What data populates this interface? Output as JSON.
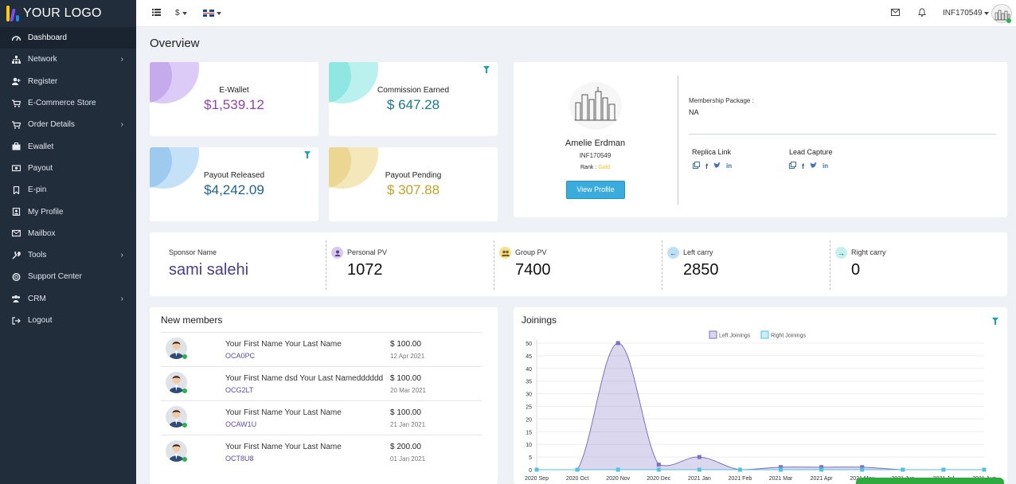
{
  "logo": {
    "text": "YOUR LOGO"
  },
  "sidebar": {
    "items": [
      {
        "label": "Dashboard",
        "icon": "dashboard-icon",
        "has_children": false,
        "active": true
      },
      {
        "label": "Network",
        "icon": "sitemap-icon",
        "has_children": true
      },
      {
        "label": "Register",
        "icon": "user-plus-icon",
        "has_children": false
      },
      {
        "label": "E-Commerce Store",
        "icon": "cart-icon",
        "has_children": false
      },
      {
        "label": "Order Details",
        "icon": "cart-icon",
        "has_children": true
      },
      {
        "label": "Ewallet",
        "icon": "briefcase-icon",
        "has_children": false
      },
      {
        "label": "Payout",
        "icon": "money-icon",
        "has_children": false
      },
      {
        "label": "E-pin",
        "icon": "bookmark-icon",
        "has_children": false
      },
      {
        "label": "My Profile",
        "icon": "profile-icon",
        "has_children": false
      },
      {
        "label": "Mailbox",
        "icon": "envelope-icon",
        "has_children": false
      },
      {
        "label": "Tools",
        "icon": "wrench-icon",
        "has_children": true
      },
      {
        "label": "Support Center",
        "icon": "support-icon",
        "has_children": false
      },
      {
        "label": "CRM",
        "icon": "users-icon",
        "has_children": true
      },
      {
        "label": "Logout",
        "icon": "logout-icon",
        "has_children": false
      }
    ]
  },
  "topbar": {
    "currency": "$",
    "username": "INF170549"
  },
  "page": {
    "title": "Overview"
  },
  "cards": {
    "ewallet": {
      "label": "E-Wallet",
      "value": "$1,539.12"
    },
    "commission": {
      "label": "Commission Earned",
      "value": "$ 647.28"
    },
    "payout_released": {
      "label": "Payout Released",
      "value": "$4,242.09"
    },
    "payout_pending": {
      "label": "Payout Pending",
      "value": "$ 307.88"
    }
  },
  "profile": {
    "name": "Amelie Erdman",
    "id": "INF170549",
    "rank_label": "Rank :",
    "rank": "Gold",
    "view_button": "View Profile",
    "membership_label": "Membership Package :",
    "membership_value": "NA",
    "replica_label": "Replica Link",
    "lead_label": "Lead Capture"
  },
  "stats": {
    "sponsor": {
      "label": "Sponsor Name",
      "value": "sami salehi"
    },
    "personal_pv": {
      "label": "Personal PV",
      "value": "1072"
    },
    "group_pv": {
      "label": "Group PV",
      "value": "7400"
    },
    "left_carry": {
      "label": "Left carry",
      "value": "2850"
    },
    "right_carry": {
      "label": "Right carry",
      "value": "0"
    }
  },
  "new_members": {
    "title": "New members",
    "rows": [
      {
        "name": "Your First Name Your Last Name",
        "id": "OCA0PC",
        "amount": "$ 100.00",
        "date": "12 Apr 2021"
      },
      {
        "name": "Your First Name dsd Your Last Namedddddd",
        "id": "OCG2LT",
        "amount": "$ 100.00",
        "date": "20 Mar 2021"
      },
      {
        "name": "Your First Name Your Last Name",
        "id": "OCAW1U",
        "amount": "$ 100.00",
        "date": "21 Jan 2021"
      },
      {
        "name": "Your First Name Your Last Name",
        "id": "OCT8U8",
        "amount": "$ 200.00",
        "date": "01 Jan 2021"
      }
    ]
  },
  "joinings": {
    "title": "Joinings"
  },
  "colors": {
    "sidebar_bg": "#222d3c",
    "ewallet_value": "#8e44ad",
    "commission_value": "#17788e",
    "payout_released_value": "#1f6190",
    "payout_pending_value": "#c4a227",
    "left_series": "#7d6fc1",
    "right_series": "#4fc3e0"
  },
  "chart_data": {
    "type": "area",
    "title": "Joinings",
    "x": [
      "2020 Sep",
      "2020 Oct",
      "2020 Nov",
      "2020 Dec",
      "2021 Jan",
      "2021 Feb",
      "2021 Mar",
      "2021 Apr",
      "2021 May",
      "2021 Jun",
      "2021 Jul",
      "2021 Aug"
    ],
    "series": [
      {
        "name": "Left Joinings",
        "values": [
          0,
          0,
          50,
          2,
          5,
          0,
          1,
          1,
          1,
          0,
          0,
          0
        ]
      },
      {
        "name": "Right Joinings",
        "values": [
          0,
          0,
          0,
          0,
          0,
          0,
          0,
          0,
          0,
          0,
          0,
          0
        ]
      }
    ],
    "yticks": [
      0,
      5,
      10,
      15,
      20,
      25,
      30,
      35,
      40,
      45,
      50
    ],
    "ylim": [
      0,
      50
    ],
    "legend": "top"
  }
}
